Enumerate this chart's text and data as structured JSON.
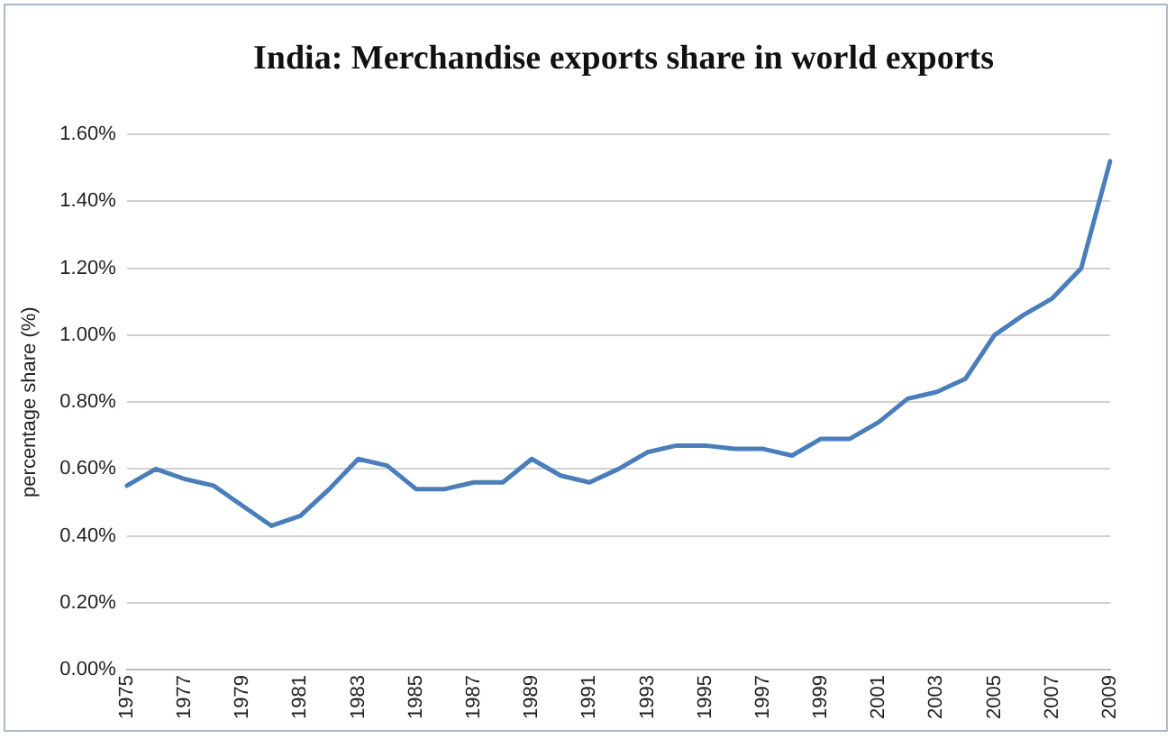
{
  "chart_data": {
    "type": "line",
    "title": "India: Merchandise exports share in world exports",
    "ylabel": "percentage share (%)",
    "categories": [
      "1975",
      null,
      "1977",
      null,
      "1979",
      null,
      "1981",
      null,
      "1983",
      null,
      "1985",
      null,
      "1987",
      null,
      "1989",
      null,
      "1991",
      null,
      "1993",
      null,
      "1995",
      null,
      "1997",
      null,
      "1999",
      null,
      "2001",
      null,
      "2003",
      null,
      "2005",
      null,
      "2007",
      null,
      "2009"
    ],
    "series": [
      {
        "color": "#4a7ebb",
        "values": [
          0.55,
          0.6,
          0.57,
          0.55,
          0.49,
          0.43,
          0.46,
          0.54,
          0.63,
          0.61,
          0.54,
          0.54,
          0.56,
          0.56,
          0.63,
          0.58,
          0.56,
          0.6,
          0.65,
          0.67,
          0.67,
          0.66,
          0.66,
          0.64,
          0.69,
          0.69,
          0.74,
          0.81,
          0.83,
          0.87,
          1.0,
          1.06,
          1.11,
          1.2,
          1.52
        ]
      }
    ],
    "ylim": [
      0,
      1.6
    ],
    "yticks": [
      {
        "value": 0,
        "label": "0.00%"
      },
      {
        "value": 0.2,
        "label": "0.20%"
      },
      {
        "value": 0.4,
        "label": "0.40%"
      },
      {
        "value": 0.6,
        "label": "0.60%"
      },
      {
        "value": 0.8,
        "label": "0.80%"
      },
      {
        "value": 1.0,
        "label": "1.00%"
      },
      {
        "value": 1.2,
        "label": "1.20%"
      },
      {
        "value": 1.4,
        "label": "1.40%"
      },
      {
        "value": 1.6,
        "label": "1.60%"
      }
    ],
    "grid": "y",
    "legend": false,
    "marker": "none",
    "line_style": "solid"
  }
}
